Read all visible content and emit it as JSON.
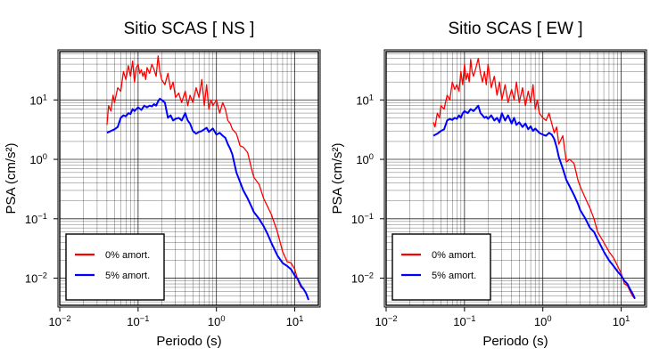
{
  "chart_data": [
    {
      "type": "line",
      "title": "Sitio SCAS [ NS ]",
      "xlabel": "Periodo (s)",
      "ylabel": "PSA (cm/s²)",
      "xscale": "log",
      "yscale": "log",
      "xlim": [
        0.01,
        20
      ],
      "ylim": [
        0.0035,
        65
      ],
      "grid": true,
      "legend_position": "bottom-left",
      "x_ticks": [
        {
          "value": 0.01,
          "base": "10",
          "exp": "−2"
        },
        {
          "value": 0.1,
          "base": "10",
          "exp": "−1"
        },
        {
          "value": 1,
          "base": "10",
          "exp": "0"
        },
        {
          "value": 10,
          "base": "10",
          "exp": "1"
        }
      ],
      "y_ticks": [
        {
          "value": 0.01,
          "base": "10",
          "exp": "−2"
        },
        {
          "value": 0.1,
          "base": "10",
          "exp": "−1"
        },
        {
          "value": 1,
          "base": "10",
          "exp": "0"
        },
        {
          "value": 10,
          "base": "10",
          "exp": "1"
        }
      ],
      "series": [
        {
          "name": "0% amort.",
          "color": "#ff0000",
          "x": [
            0.04,
            0.042,
            0.045,
            0.048,
            0.05,
            0.055,
            0.06,
            0.065,
            0.07,
            0.075,
            0.08,
            0.085,
            0.09,
            0.095,
            0.1,
            0.105,
            0.11,
            0.115,
            0.12,
            0.125,
            0.13,
            0.14,
            0.15,
            0.16,
            0.17,
            0.18,
            0.19,
            0.2,
            0.22,
            0.24,
            0.26,
            0.28,
            0.3,
            0.33,
            0.36,
            0.4,
            0.43,
            0.46,
            0.5,
            0.55,
            0.6,
            0.65,
            0.7,
            0.75,
            0.8,
            0.85,
            0.9,
            1.0,
            1.1,
            1.2,
            1.3,
            1.4,
            1.5,
            1.6,
            1.8,
            2.0,
            2.2,
            2.5,
            2.8,
            3.0,
            3.5,
            4.0,
            4.5,
            5.0,
            6.0,
            7.0,
            8.0,
            9.0,
            10.0,
            11.0,
            12.0,
            13.0,
            14.0,
            15.0
          ],
          "y": [
            3.8,
            8,
            6.5,
            12,
            9,
            16,
            14,
            30,
            22,
            38,
            25,
            45,
            20,
            35,
            40,
            28,
            32,
            25,
            30,
            22,
            35,
            28,
            40,
            32,
            25,
            55,
            30,
            22,
            18,
            28,
            15,
            20,
            11,
            13,
            9,
            14,
            8,
            12,
            9,
            16,
            11,
            22,
            8,
            18,
            7,
            10,
            8,
            10,
            6,
            9,
            7,
            4.5,
            4.0,
            3.2,
            2.7,
            1.7,
            1.6,
            1.3,
            0.7,
            0.5,
            0.38,
            0.22,
            0.16,
            0.12,
            0.06,
            0.028,
            0.019,
            0.018,
            0.014,
            0.009,
            0.007,
            0.0065,
            0.0055,
            0.0045
          ]
        },
        {
          "name": "5% amort.",
          "color": "#0000ff",
          "x": [
            0.04,
            0.045,
            0.05,
            0.055,
            0.06,
            0.065,
            0.07,
            0.075,
            0.08,
            0.085,
            0.09,
            0.095,
            0.1,
            0.11,
            0.12,
            0.13,
            0.14,
            0.15,
            0.16,
            0.17,
            0.18,
            0.19,
            0.2,
            0.22,
            0.24,
            0.26,
            0.28,
            0.3,
            0.33,
            0.36,
            0.4,
            0.43,
            0.46,
            0.5,
            0.55,
            0.6,
            0.65,
            0.7,
            0.75,
            0.8,
            0.9,
            1.0,
            1.1,
            1.2,
            1.3,
            1.4,
            1.5,
            1.6,
            1.8,
            2.0,
            2.2,
            2.5,
            2.8,
            3.0,
            3.5,
            4.0,
            4.5,
            5.0,
            6.0,
            7.0,
            8.0,
            9.0,
            10.0,
            11.0,
            12.0,
            13.0,
            14.0,
            15.0
          ],
          "y": [
            2.8,
            3.0,
            3.2,
            3.5,
            5.0,
            5.5,
            5.3,
            6.0,
            5.8,
            7.0,
            6.5,
            7.0,
            7.5,
            6.8,
            8.0,
            7.5,
            8.0,
            7.8,
            8.5,
            8.0,
            9.5,
            10.5,
            10.0,
            9.0,
            5.0,
            5.5,
            4.5,
            4.8,
            5.0,
            4.5,
            6.0,
            4.5,
            4.0,
            3.0,
            2.7,
            2.9,
            3.0,
            3.2,
            3.4,
            2.9,
            3.3,
            2.6,
            2.8,
            2.5,
            2.3,
            1.8,
            1.5,
            1.2,
            0.6,
            0.42,
            0.3,
            0.22,
            0.16,
            0.13,
            0.1,
            0.075,
            0.055,
            0.04,
            0.024,
            0.018,
            0.016,
            0.014,
            0.011,
            0.0095,
            0.0075,
            0.0065,
            0.0055,
            0.0043
          ]
        }
      ]
    },
    {
      "type": "line",
      "title": "Sitio SCAS [ EW ]",
      "xlabel": "Periodo (s)",
      "ylabel": "PSA (cm/s²)",
      "xscale": "log",
      "yscale": "log",
      "xlim": [
        0.01,
        20
      ],
      "ylim": [
        0.0035,
        65
      ],
      "grid": true,
      "legend_position": "bottom-left",
      "x_ticks": [
        {
          "value": 0.01,
          "base": "10",
          "exp": "−2"
        },
        {
          "value": 0.1,
          "base": "10",
          "exp": "−1"
        },
        {
          "value": 1,
          "base": "10",
          "exp": "0"
        },
        {
          "value": 10,
          "base": "10",
          "exp": "1"
        }
      ],
      "y_ticks": [
        {
          "value": 0.01,
          "base": "10",
          "exp": "−2"
        },
        {
          "value": 0.1,
          "base": "10",
          "exp": "−1"
        },
        {
          "value": 1,
          "base": "10",
          "exp": "0"
        },
        {
          "value": 10,
          "base": "10",
          "exp": "1"
        }
      ],
      "series": [
        {
          "name": "0% amort.",
          "color": "#ff0000",
          "x": [
            0.04,
            0.042,
            0.045,
            0.048,
            0.05,
            0.055,
            0.06,
            0.065,
            0.07,
            0.075,
            0.08,
            0.085,
            0.09,
            0.095,
            0.1,
            0.105,
            0.11,
            0.115,
            0.12,
            0.125,
            0.13,
            0.14,
            0.15,
            0.16,
            0.17,
            0.18,
            0.19,
            0.2,
            0.22,
            0.24,
            0.26,
            0.28,
            0.3,
            0.33,
            0.36,
            0.4,
            0.43,
            0.46,
            0.5,
            0.55,
            0.6,
            0.65,
            0.7,
            0.75,
            0.8,
            0.85,
            0.9,
            1.0,
            1.1,
            1.2,
            1.3,
            1.4,
            1.5,
            1.6,
            1.8,
            2.0,
            2.2,
            2.5,
            2.8,
            3.0,
            3.5,
            4.0,
            4.5,
            5.0,
            6.0,
            7.0,
            8.0,
            9.0,
            10.0,
            11.0,
            12.0,
            13.0,
            14.0,
            15.0
          ],
          "y": [
            4.2,
            3.5,
            6.0,
            5.0,
            8.0,
            7.0,
            12.0,
            10.0,
            20.0,
            15.0,
            18.0,
            14.0,
            30.0,
            18.0,
            40.0,
            22.0,
            28.0,
            20.0,
            48.0,
            30.0,
            25.0,
            35.0,
            50.0,
            28.0,
            20.0,
            30.0,
            18.0,
            40.0,
            16.0,
            25.0,
            12.0,
            20.0,
            10.0,
            18.0,
            9.0,
            15.0,
            10.0,
            20.0,
            9.0,
            16.0,
            8.0,
            14.0,
            9.0,
            18.0,
            7.0,
            10.0,
            6.0,
            5.0,
            4.5,
            6.0,
            4.0,
            2.8,
            3.5,
            1.8,
            2.5,
            0.9,
            1.0,
            0.85,
            0.45,
            0.35,
            0.22,
            0.15,
            0.1,
            0.06,
            0.04,
            0.028,
            0.022,
            0.016,
            0.012,
            0.008,
            0.0075,
            0.006,
            0.005,
            0.0045
          ]
        },
        {
          "name": "5% amort.",
          "color": "#0000ff",
          "x": [
            0.04,
            0.045,
            0.05,
            0.055,
            0.06,
            0.065,
            0.07,
            0.075,
            0.08,
            0.085,
            0.09,
            0.095,
            0.1,
            0.11,
            0.12,
            0.13,
            0.14,
            0.15,
            0.16,
            0.17,
            0.18,
            0.19,
            0.2,
            0.22,
            0.24,
            0.26,
            0.28,
            0.3,
            0.33,
            0.36,
            0.4,
            0.43,
            0.46,
            0.5,
            0.55,
            0.6,
            0.65,
            0.7,
            0.75,
            0.8,
            0.9,
            1.0,
            1.1,
            1.2,
            1.3,
            1.4,
            1.5,
            1.6,
            1.8,
            2.0,
            2.2,
            2.5,
            2.8,
            3.0,
            3.5,
            4.0,
            4.5,
            5.0,
            6.0,
            7.0,
            8.0,
            9.0,
            10.0,
            11.0,
            12.0,
            13.0,
            14.0,
            15.0
          ],
          "y": [
            2.5,
            2.7,
            3.0,
            3.2,
            4.5,
            4.8,
            4.6,
            5.0,
            4.8,
            5.5,
            5.0,
            6.0,
            6.5,
            6.0,
            7.0,
            6.5,
            7.2,
            8.0,
            6.0,
            5.5,
            5.0,
            5.2,
            4.8,
            5.5,
            4.5,
            5.0,
            4.2,
            6.0,
            4.5,
            5.5,
            4.0,
            5.0,
            3.8,
            4.2,
            3.5,
            4.0,
            3.2,
            3.6,
            3.0,
            3.3,
            2.8,
            2.6,
            2.5,
            2.8,
            2.6,
            2.2,
            1.6,
            1.1,
            0.7,
            0.45,
            0.35,
            0.25,
            0.18,
            0.14,
            0.1,
            0.07,
            0.06,
            0.045,
            0.028,
            0.02,
            0.016,
            0.013,
            0.011,
            0.009,
            0.008,
            0.0065,
            0.0055,
            0.0045
          ]
        }
      ]
    }
  ]
}
